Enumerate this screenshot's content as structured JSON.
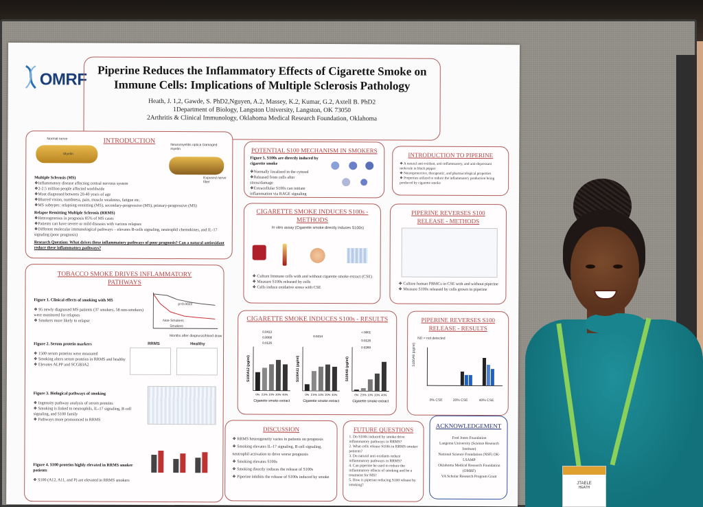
{
  "poster": {
    "logo": "OMRF",
    "title": "Piperine Reduces the Inflammatory Effects of Cigarette Smoke on Immune Cells: Implications of Multiple Sclerosis Pathology",
    "authors_line1": "Heath, J. 1,2, Gawde, S. PhD2,Nguyen, A.2, Massey, K.2, Kumar, G.2, Axtell B. PhD2",
    "authors_line2": "1Department of Biology, Langston University, Langston, OK 73050",
    "authors_line3": "2Arthritis & Clinical Immunology, Oklahoma Medical Research Foundation, Oklahoma"
  },
  "sections": {
    "intro": {
      "heading": "INTRODUCTION",
      "fig_label_a": "Normal nerve",
      "fig_label_b": "Myelin",
      "fig_label_c": "Neuromyelitis optica Damaged myelin",
      "fig_label_d": "Exposed nerve fiber",
      "ms_title": "Multiple Sclerosis (MS)",
      "ms_1": "❖Inflammatory disease affecting central nervous system",
      "ms_2": "❖2-2.5 million people affected worldwide",
      "ms_3": "❖Most diagnosed between 20-40 years of age",
      "ms_4": "❖Blurred vision, numbness, pain, muscle weakness, fatigue etc.",
      "ms_5": "❖MS subtypes: relapsing-remitting (MS), secondary-progressive (MS), primary-progressive (MS)",
      "rrms_title": "Relapse Remitting Multiple Sclerosis (RRMS)",
      "rrms_1": "❖Heterogeneous in prognosis 85% of MS cases",
      "rrms_2": "❖Patients can have severe or mild diseases with various relapses",
      "rrms_3": "❖Different molecular immunological pathways – elevates B-cells signaling, neutrophil chemokines, and IL-17 signaling (poor prognosis)",
      "question": "Research Question: What drives these inflammatory pathways of poor prognosis? Can a natural antioxidant reduce these inflammatory pathways?"
    },
    "tobacco": {
      "heading": "TOBACCO SMOKE DRIVES INFLAMMATORY PATHWAYS",
      "fig1_title": "Figure 1. Clinical effects of smoking with MS",
      "fig1_b1": "95 newly diagnosed MS patients (37 smokers, 58 non-smokers) were monitored for relapses",
      "fig1_b2": "Smokers more likely to relapse",
      "fig1_p": "p=0.0022",
      "fig1_xlabel": "Months after diagnosis/blood draw",
      "fig1_ylabel": "% Relapse Free",
      "fig1_legend_a": "Non-Smokers",
      "fig1_legend_b": "Smokers",
      "fig2_title": "Figure 2. Serum protein markers",
      "fig2_b1": "1500 serum proteins were measured",
      "fig2_b2": "Smoking alters serum proteins in RRMS and healthy",
      "fig2_b3": "Elevates ALPP and SCGB3A2",
      "fig2_label_a": "RRMS",
      "fig2_label_b": "Healthy",
      "fig3_title": "Figure 3. Biological pathways of smoking",
      "fig3_b1": "Ingenuity pathway analysis of serum proteins",
      "fig3_b2": "Smoking is linked to neutrophils, IL-17 signaling, B cell signaling, and S100 family",
      "fig3_b3": "Pathways more pronounced in RRMS",
      "fig4_title": "Figure 4. S100 proteins highly elevated in RRMS smoker patients",
      "fig4_b1": "S100 (A12, A11, and P) are elevated in RRMS smokers"
    },
    "mechanism": {
      "heading": "POTENTIAL S100 MECHANISM IN SMOKERS",
      "fig5": "Figure 5. S100s are directly induced by cigarette smoke",
      "b1": "❖Normally localized in the cytosol",
      "b2": "❖Released from cells after stress/damage",
      "b3": "❖Extracellular S100s can initiate inflammation via RAGE signaling"
    },
    "intro_piperine": {
      "heading": "INTRODUCTION TO PIPERINE",
      "b1": "❖ A natural anti-oxidant, anti-inflammatory, and anti-depressant molecule in black pepper",
      "b2": "❖ Neuroprotective, therapeutic, and pharmacological properties",
      "b3": "❖ Properties utilized to reduce the inflammatory production being produced by cigarette smoke"
    },
    "cs_methods": {
      "heading": "CIGARETTE SMOKE INDUCES S100s - METHODS",
      "subtitle": "In vitro assay (Cigarette smoke directly induces S100s)",
      "b1": "❖ Culture Immune cells with and without cigarette smoke extract (CSE)",
      "b2": "❖ Measure S100s released by cells",
      "b3": "❖ Cells induce oxidative stress with CSE"
    },
    "pip_methods": {
      "heading": "PIPERINE REVERSES S100 RELEASE - METHODS",
      "b1": "❖ Culture human PBMCs in CSE with and without piperine",
      "b2": "❖ Measure S100s released by cells grown in piperine"
    },
    "cs_results": {
      "heading": "CIGARETTE SMOKE INDUCES S100s - RESULTS",
      "xlabel": "Cigarette smoke extract",
      "y1": "S100A12 (pg/ml)",
      "y2": "S100A11 (pg/ml)",
      "y3": "S100A8 (pg/ml)",
      "p1": "0.0413",
      "p2": "0.0008",
      "p3": "0.0126",
      "p4": "0.0214",
      "p5": "<.0001",
      "p6": "0.0128",
      "p7": "0.0269"
    },
    "pip_results": {
      "heading": "PIPERINE REVERSES S100 RELEASE - RESULTS",
      "xlabel_a": "0% CSE",
      "xlabel_b": "20% CSE",
      "xlabel_c": "40% CSE",
      "ylabel": "S100A9 (pg/ml)",
      "note": "ND = not detected"
    },
    "discussion": {
      "heading": "DISCUSSION",
      "b1": "❖ RRMS heterogeneity varies in patients on prognosis",
      "b2": "❖ Smoking elevates IL-17 signaling, B cell signaling, neutrophil activation to drive worse prognosis",
      "b3": "❖ Smoking elevates S100s",
      "b4": "❖ Smoking directly induces the release of S100s",
      "b5": "❖ Piperine inhibits the release of S100s induced by smoke"
    },
    "future": {
      "heading": "FUTURE QUESTIONS",
      "b1": "1. Do S100s induced by smoke drive inflammatory pathways in RRMS?",
      "b2": "2. What cells release S100s in RRMS smoker patients?",
      "b3": "3. Do natural anti-oxidants reduce inflammatory pathways in RRMS?",
      "b4": "4. Can piperine be used to reduce the inflammatory effects of smoking and be a treatment for MS?",
      "b5": "5. How is piperine reducing S100 release by smoking?"
    },
    "ack": {
      "heading": "ACKNOWLEDGEMENT",
      "l1": "Fred Jones Foundation",
      "l2": "Langston University (Science Research Institute)",
      "l3": "National Science Foundation (NSF) OK-LSAMP",
      "l4": "Oklahoma Medical Research Foundation (OMRF)",
      "l5": "VA Scholar Research Program Grant"
    }
  },
  "badge": {
    "name": "JTAELE",
    "sub": "HEATH"
  },
  "chart_data": [
    {
      "type": "bar",
      "title": "S100A12",
      "categories": [
        "0%",
        "2.5%",
        "10%",
        "20%",
        "40%"
      ],
      "values": [
        105,
        130,
        150,
        175,
        150
      ],
      "ylim": [
        0,
        250
      ]
    },
    {
      "type": "bar",
      "title": "S100A11",
      "categories": [
        "0%",
        "2.5%",
        "10%",
        "20%",
        "40%"
      ],
      "values": [
        30,
        90,
        110,
        120,
        110
      ],
      "ylim": [
        0,
        200
      ]
    },
    {
      "type": "bar",
      "title": "S100A8",
      "categories": [
        "0%",
        "2.5%",
        "10%",
        "20%",
        "40%"
      ],
      "values": [
        5,
        10,
        40,
        60,
        100
      ],
      "ylim": [
        0,
        150
      ]
    }
  ],
  "colors": {
    "accent": "#b34545",
    "logo": "#1c3f7a",
    "shirt": "#12717a",
    "lanyard": "#8bd05a"
  }
}
